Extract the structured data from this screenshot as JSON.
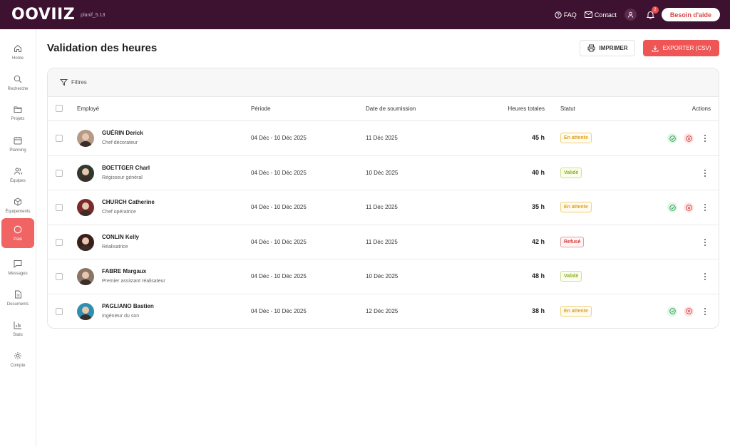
{
  "app": {
    "logo": "OOVIIZ",
    "version": "planif_5.13"
  },
  "topbar": {
    "faq": "FAQ",
    "contact": "Contact",
    "notifications": "2",
    "help": "Besoin d'aide"
  },
  "sidebar": {
    "items": [
      {
        "label": "Home",
        "icon": "home-icon"
      },
      {
        "label": "Recherche",
        "icon": "search-icon"
      },
      {
        "label": "Projets",
        "icon": "folder-icon"
      },
      {
        "label": "Planning",
        "icon": "calendar-icon"
      },
      {
        "label": "Équipes",
        "icon": "users-icon"
      },
      {
        "label": "Équipements",
        "icon": "box-icon"
      },
      {
        "label": "Paie",
        "icon": "circle-icon",
        "active": true
      },
      {
        "label": "Messages",
        "icon": "message-icon"
      },
      {
        "label": "Documents",
        "icon": "document-icon"
      },
      {
        "label": "Stats",
        "icon": "chart-icon"
      },
      {
        "label": "Compte",
        "icon": "gear-icon"
      }
    ]
  },
  "page": {
    "title": "Validation des heures",
    "print": "IMPRIMER",
    "export": "EXPORTER (CSV)"
  },
  "table": {
    "filters": "Filtres",
    "columns": {
      "employee": "Employé",
      "period": "Période",
      "submitted": "Date de soumission",
      "hours": "Heures totales",
      "status": "Statut",
      "actions": "Actions"
    },
    "rows": [
      {
        "name": "GUÉRIN Derick",
        "role": "Chef décorateur",
        "period": "04 Déc - 10 Déc 2025",
        "submitted": "11 Déc 2025",
        "hours": "45 h",
        "status": "En attente",
        "status_type": "wait",
        "avatar_color": "#b59a86"
      },
      {
        "name": "BOETTGER Charl",
        "role": "Régisseur général",
        "period": "04 Déc - 10 Déc 2025",
        "submitted": "10 Déc 2025",
        "hours": "40 h",
        "status": "Validé",
        "status_type": "ok",
        "avatar_color": "#2f3a2c"
      },
      {
        "name": "CHURCH Catherine",
        "role": "Chef opératrice",
        "period": "04 Déc - 10 Déc 2025",
        "submitted": "11 Déc 2025",
        "hours": "35 h",
        "status": "En attente",
        "status_type": "wait",
        "avatar_color": "#7a2a2a"
      },
      {
        "name": "CONLIN Kelly",
        "role": "Réalisatrice",
        "period": "04 Déc - 10 Déc 2025",
        "submitted": "11 Déc 2025",
        "hours": "42 h",
        "status": "Refusé",
        "status_type": "ko",
        "avatar_color": "#3a1e1a"
      },
      {
        "name": "FABRE Margaux",
        "role": "Premier assistant réalisateur",
        "period": "04 Déc - 10 Déc 2025",
        "submitted": "10 Déc 2025",
        "hours": "48 h",
        "status": "Validé",
        "status_type": "ok",
        "avatar_color": "#8b7466"
      },
      {
        "name": "PAGLIANO Bastien",
        "role": "Ingénieur du son",
        "period": "04 Déc - 10 Déc 2025",
        "submitted": "12 Déc 2025",
        "hours": "38 h",
        "status": "En attente",
        "status_type": "wait",
        "avatar_color": "#2e8fb0"
      }
    ]
  },
  "colors": {
    "topbar": "#3d1130",
    "accent": "#ef5555",
    "pending": "#e0a01e",
    "approved": "#8ab21a",
    "rejected": "#d63b3b"
  }
}
